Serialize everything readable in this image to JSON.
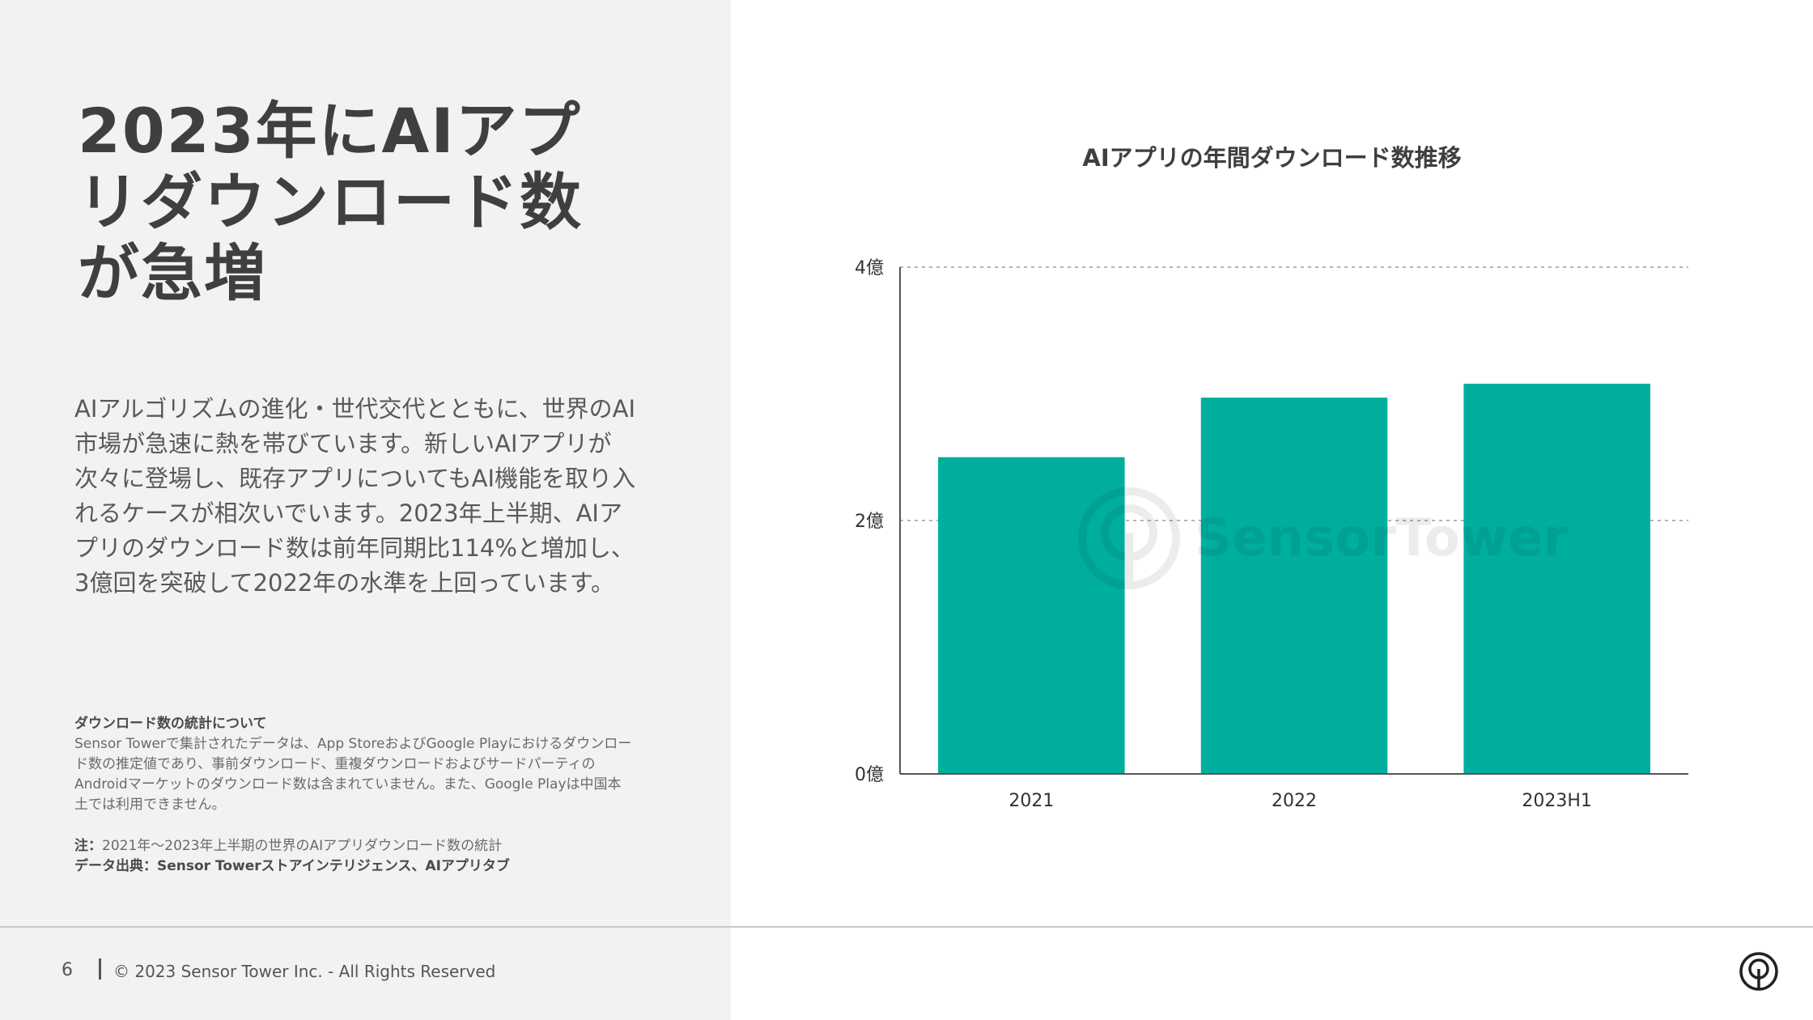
{
  "title": "2023年にAIアプリダウンロード数が急増",
  "body": "AIアルゴリズムの進化・世代交代とともに、世界のAI市場が急速に熱を帯びています。新しいAIアプリが次々に登場し、既存アプリについてもAI機能を取り入れるケースが相次いでいます。2023年上半期、AIアプリのダウンロード数は前年同期比114%と増加し、3億回を突破して2022年の水準を上回っています。",
  "notes": {
    "heading": "ダウンロード数の統計について",
    "description": "Sensor Towerで集計されたデータは、App StoreおよびGoogle Playにおけるダウンロード数の推定値であり、事前ダウンロード、重複ダウンロードおよびサードパーティのAndroidマーケットのダウンロード数は含まれていません。また、Google Playは中国本土では利用できません。",
    "note_label": "注：",
    "note_text": "2021年〜2023年上半期の世界のAIアプリダウンロード数の統計",
    "source_label": "データ出典：",
    "source_text": "Sensor Towerストアインテリジェンス、AIアプリタブ"
  },
  "watermark": {
    "text": "SensorTower"
  },
  "footer": {
    "page_number": "6",
    "copyright": "© 2023 Sensor Tower Inc. - All Rights Reserved",
    "logo_icon": "sensor-tower-logo"
  },
  "chart_data": {
    "type": "bar",
    "title": "AIアプリの年間ダウンロード数推移",
    "categories": [
      "2021",
      "2022",
      "2023H1"
    ],
    "values": [
      2.5,
      2.97,
      3.08
    ],
    "yticks": [
      {
        "value": 0,
        "label": "0億"
      },
      {
        "value": 2,
        "label": "2億"
      },
      {
        "value": 4,
        "label": "4億"
      }
    ],
    "ylim": [
      0,
      4
    ],
    "grid": true,
    "color": "#00ae9e"
  }
}
